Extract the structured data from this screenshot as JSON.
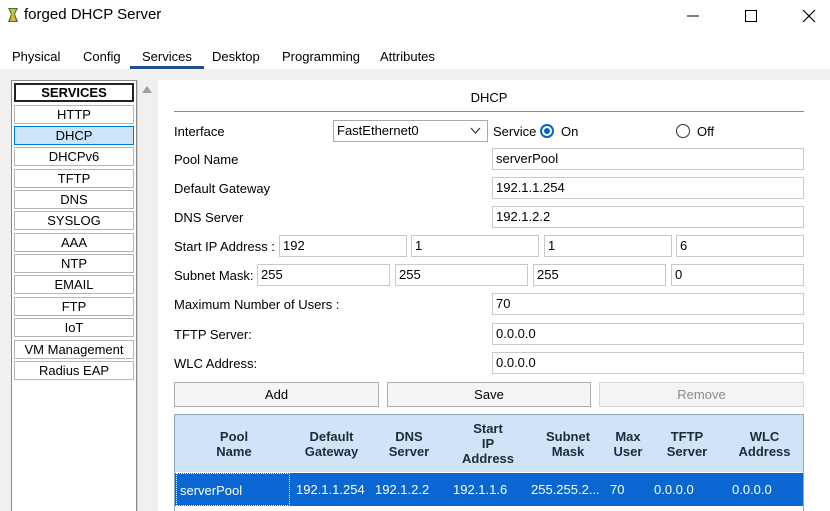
{
  "window": {
    "title": "forged DHCP Server"
  },
  "tabs": [
    "Physical",
    "Config",
    "Services",
    "Desktop",
    "Programming",
    "Attributes"
  ],
  "active_tab": "Services",
  "sidebar": {
    "header": "SERVICES",
    "items": [
      "HTTP",
      "DHCP",
      "DHCPv6",
      "TFTP",
      "DNS",
      "SYSLOG",
      "AAA",
      "NTP",
      "EMAIL",
      "FTP",
      "IoT",
      "VM Management",
      "Radius EAP"
    ],
    "selected": "DHCP"
  },
  "dhcp": {
    "title": "DHCP",
    "interface_label": "Interface",
    "interface_value": "FastEthernet0",
    "service_label": "Service",
    "on_label": "On",
    "off_label": "Off",
    "service_state": "On",
    "pool_name_label": "Pool Name",
    "pool_name_value": "serverPool",
    "gateway_label": "Default Gateway",
    "gateway_value": "192.1.1.254",
    "dns_label": "DNS Server",
    "dns_value": "192.1.2.2",
    "start_ip_label": "Start IP Address :",
    "start_ip": [
      "192",
      "1",
      "1",
      "6"
    ],
    "subnet_label": "Subnet Mask:",
    "subnet": [
      "255",
      "255",
      "255",
      "0"
    ],
    "max_users_label": "Maximum Number of Users :",
    "max_users_value": "70",
    "tftp_label": "TFTP Server:",
    "tftp_value": "0.0.0.0",
    "wlc_label": "WLC Address:",
    "wlc_value": "0.0.0.0",
    "add_label": "Add",
    "save_label": "Save",
    "remove_label": "Remove"
  },
  "pool_table": {
    "headers": [
      [
        "Pool",
        "Name"
      ],
      [
        "Default",
        "Gateway"
      ],
      [
        "DNS",
        "Server"
      ],
      [
        "Start",
        "IP",
        "Address"
      ],
      [
        "Subnet",
        "Mask"
      ],
      [
        "Max",
        "User"
      ],
      [
        "TFTP",
        "Server"
      ],
      [
        "WLC",
        "Address"
      ]
    ],
    "rows": [
      [
        "serverPool",
        "192.1.1.254",
        "192.1.2.2",
        "192.1.1.6",
        "255.255.2...",
        "70",
        "0.0.0.0",
        "0.0.0.0"
      ]
    ]
  }
}
